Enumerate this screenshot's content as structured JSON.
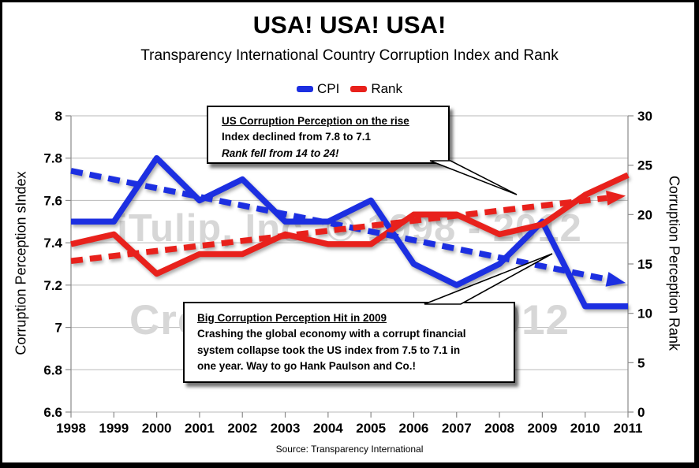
{
  "chart_data": {
    "type": "line",
    "title": "USA! USA! USA!",
    "subtitle": "Transparency International Country Corruption Index and Rank",
    "source": "Source: Transparency International",
    "categories": [
      "1998",
      "1999",
      "2000",
      "2001",
      "2002",
      "2003",
      "2004",
      "2005",
      "2006",
      "2007",
      "2008",
      "2009",
      "2010",
      "2011"
    ],
    "series": [
      {
        "name": "CPI",
        "axis": "left",
        "style": "solid",
        "color": "#1c2fe1",
        "values": [
          7.5,
          7.5,
          7.8,
          7.6,
          7.7,
          7.5,
          7.5,
          7.6,
          7.3,
          7.2,
          7.3,
          7.5,
          7.1,
          7.1
        ]
      },
      {
        "name": "Rank",
        "axis": "right",
        "style": "solid",
        "color": "#e8211c",
        "values": [
          17,
          18,
          14,
          16,
          16,
          18,
          17,
          17,
          20,
          20,
          18,
          19,
          22,
          24
        ]
      },
      {
        "name": "CPI trend",
        "axis": "left",
        "style": "dashed",
        "arrow": true,
        "color": "#1c2fe1",
        "trend": [
          7.74,
          7.21
        ]
      },
      {
        "name": "Rank trend",
        "axis": "right",
        "style": "dashed",
        "arrow": true,
        "color": "#e8211c",
        "trend": [
          15.3,
          21.9
        ]
      }
    ],
    "left_axis": {
      "label": "Corruption Perception sIndex",
      "min": 6.6,
      "max": 8,
      "ticks": [
        8,
        7.8,
        7.6,
        7.4,
        7.2,
        7,
        6.8,
        6.6
      ],
      "tick_labels": [
        "8",
        "7.8",
        "7.6",
        "7.4",
        "7.2",
        "7",
        "6.8",
        "6.6"
      ]
    },
    "right_axis": {
      "label": "Corruption Perception Rank",
      "min": 0,
      "max": 30,
      "ticks": [
        30,
        25,
        20,
        15,
        10,
        5,
        0
      ],
      "tick_labels": [
        "30",
        "25",
        "20",
        "15",
        "10",
        "5",
        "0"
      ]
    },
    "grid": true,
    "legend_position": "top"
  },
  "annotations": {
    "top": {
      "title": "US Corruption Perception on the rise",
      "line1": "Index declined from 7.8 to 7.1",
      "line2": "Rank fell from 14 to 24!"
    },
    "bottom": {
      "title": "Big Corruption Perception Hit in 2009",
      "line1": "Crashing the global economy with a corrupt financial",
      "line2": "system collapse took the US index from 7.5 to 7.1 in",
      "line3": "one year. Way to go Hank Paulson and Co.!"
    }
  },
  "watermarks": {
    "line1": "iTulip, Inc. © 1998 - 2012",
    "line2": "Created: Aug. 2, 2012"
  },
  "colors": {
    "cpi_blue": "#1c2fe1",
    "rank_red": "#e8211c",
    "gridline": "#b9b9b9",
    "axis": "#8a8a8a",
    "watermark": "#d7d7d7"
  }
}
